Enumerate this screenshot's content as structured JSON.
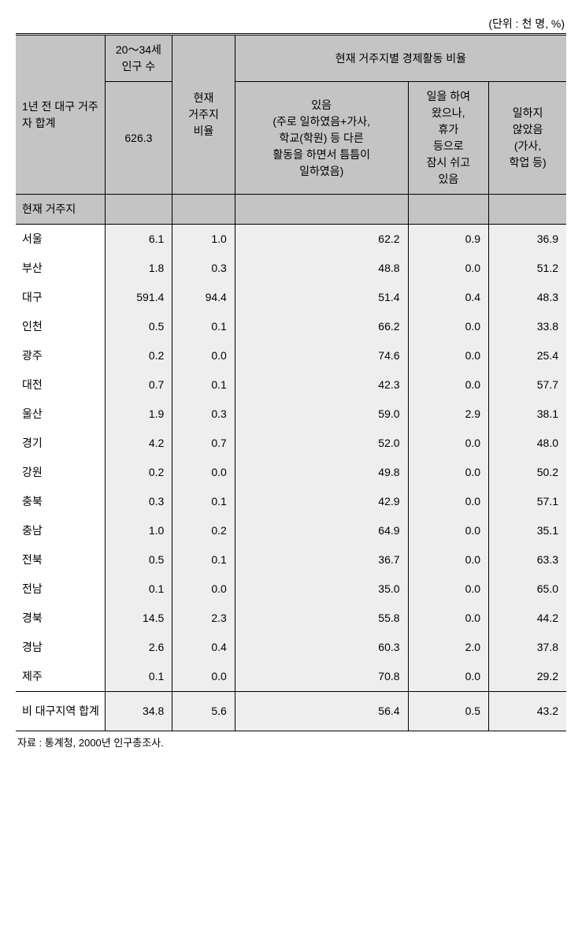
{
  "unit_text": "(단위 : 천 명, %)",
  "header": {
    "pop_col": "20～34세\n인구 수",
    "econ_group": "현재 거주지별 경제활동 비율",
    "rowhead_top": "1년 전 대구 거주자 합계",
    "total_value": "626.3",
    "ratio_col": "현재\n거주지\n비율",
    "col_working": "있음\n(주로 일하였음+가사,\n학교(학원) 등 다른\n활동을 하면서 틈틈이\n일하였음)",
    "col_resting": "일을 하여\n왔으나,\n휴가\n등으로\n잠시 쉬고\n있음",
    "col_notwork": "일하지\n않았음\n(가사,\n학업 등)",
    "section": "현재 거주지"
  },
  "rows": [
    {
      "label": "서울",
      "pop": "6.1",
      "ratio": "1.0",
      "w": "62.2",
      "r": "0.9",
      "n": "36.9"
    },
    {
      "label": "부산",
      "pop": "1.8",
      "ratio": "0.3",
      "w": "48.8",
      "r": "0.0",
      "n": "51.2"
    },
    {
      "label": "대구",
      "pop": "591.4",
      "ratio": "94.4",
      "w": "51.4",
      "r": "0.4",
      "n": "48.3"
    },
    {
      "label": "인천",
      "pop": "0.5",
      "ratio": "0.1",
      "w": "66.2",
      "r": "0.0",
      "n": "33.8"
    },
    {
      "label": "광주",
      "pop": "0.2",
      "ratio": "0.0",
      "w": "74.6",
      "r": "0.0",
      "n": "25.4"
    },
    {
      "label": "대전",
      "pop": "0.7",
      "ratio": "0.1",
      "w": "42.3",
      "r": "0.0",
      "n": "57.7"
    },
    {
      "label": "울산",
      "pop": "1.9",
      "ratio": "0.3",
      "w": "59.0",
      "r": "2.9",
      "n": "38.1"
    },
    {
      "label": "경기",
      "pop": "4.2",
      "ratio": "0.7",
      "w": "52.0",
      "r": "0.0",
      "n": "48.0"
    },
    {
      "label": "강원",
      "pop": "0.2",
      "ratio": "0.0",
      "w": "49.8",
      "r": "0.0",
      "n": "50.2"
    },
    {
      "label": "충북",
      "pop": "0.3",
      "ratio": "0.1",
      "w": "42.9",
      "r": "0.0",
      "n": "57.1"
    },
    {
      "label": "충남",
      "pop": "1.0",
      "ratio": "0.2",
      "w": "64.9",
      "r": "0.0",
      "n": "35.1"
    },
    {
      "label": "전북",
      "pop": "0.5",
      "ratio": "0.1",
      "w": "36.7",
      "r": "0.0",
      "n": "63.3"
    },
    {
      "label": "전남",
      "pop": "0.1",
      "ratio": "0.0",
      "w": "35.0",
      "r": "0.0",
      "n": "65.0"
    },
    {
      "label": "경북",
      "pop": "14.5",
      "ratio": "2.3",
      "w": "55.8",
      "r": "0.0",
      "n": "44.2"
    },
    {
      "label": "경남",
      "pop": "2.6",
      "ratio": "0.4",
      "w": "60.3",
      "r": "2.0",
      "n": "37.8"
    },
    {
      "label": "제주",
      "pop": "0.1",
      "ratio": "0.0",
      "w": "70.8",
      "r": "0.0",
      "n": "29.2"
    }
  ],
  "total_row": {
    "label": "비 대구지역 합계",
    "pop": "34.8",
    "ratio": "5.6",
    "w": "56.4",
    "r": "0.5",
    "n": "43.2"
  },
  "source": "자료 : 통계청, 2000년 인구총조사.",
  "style": {
    "header_bg": "#c4c4c4",
    "num_bg": "#eeeeee",
    "border": "#000000",
    "font_size_pt": 14
  }
}
